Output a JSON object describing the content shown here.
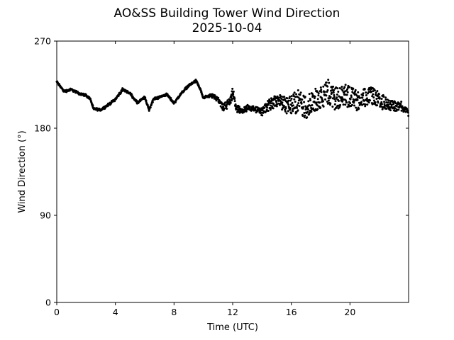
{
  "chart_data": {
    "type": "scatter",
    "title": "AO&SS Building Tower Wind Direction",
    "subtitle": "2025-10-04",
    "xlabel": "Time (UTC)",
    "ylabel": "Wind Direction (°)",
    "xlim": [
      0,
      24
    ],
    "ylim": [
      0,
      270
    ],
    "x_ticks": [
      0,
      4,
      8,
      12,
      16,
      20
    ],
    "x_tick_labels": [
      "0",
      "4",
      "8",
      "12",
      "16",
      "20"
    ],
    "y_ticks": [
      0,
      90,
      180,
      270
    ],
    "y_tick_labels": [
      "0",
      "90",
      "180",
      "270"
    ],
    "grid": false,
    "marker_color": "#000000",
    "series_profile": {
      "x": [
        0.0,
        0.5,
        1.0,
        1.5,
        2.0,
        2.3,
        2.5,
        3.0,
        3.5,
        4.0,
        4.5,
        5.0,
        5.5,
        6.0,
        6.3,
        6.6,
        7.0,
        7.5,
        8.0,
        8.3,
        8.6,
        9.0,
        9.5,
        9.8,
        10.0,
        10.5,
        11.0,
        11.3,
        11.6,
        12.0,
        12.3,
        12.6,
        13.0,
        13.5,
        14.0,
        14.5,
        15.0,
        15.5,
        16.0,
        16.5,
        17.0,
        17.5,
        18.0,
        18.5,
        19.0,
        19.5,
        20.0,
        20.5,
        21.0,
        21.5,
        22.0,
        22.5,
        23.0,
        23.5,
        24.0
      ],
      "y": [
        228,
        218,
        220,
        216,
        214,
        210,
        200,
        199,
        204,
        210,
        220,
        216,
        206,
        212,
        199,
        210,
        212,
        215,
        206,
        212,
        218,
        224,
        229,
        220,
        211,
        214,
        210,
        202,
        203,
        216,
        200,
        198,
        201,
        200,
        197,
        204,
        208,
        205,
        204,
        208,
        201,
        208,
        212,
        218,
        210,
        213,
        212,
        208,
        212,
        214,
        209,
        205,
        203,
        203,
        196
      ],
      "scatter": [
        0,
        0,
        0,
        0,
        0,
        0,
        0,
        0,
        0,
        0,
        0,
        0,
        0,
        0,
        0,
        0,
        0,
        0,
        0,
        0,
        0,
        0,
        0,
        0,
        0,
        1,
        2,
        3,
        3,
        4,
        3,
        2,
        2,
        2,
        3,
        4,
        5,
        6,
        8,
        9,
        9,
        9,
        9,
        10,
        9,
        9,
        9,
        8,
        7,
        7,
        6,
        5,
        4,
        3,
        2
      ]
    }
  }
}
